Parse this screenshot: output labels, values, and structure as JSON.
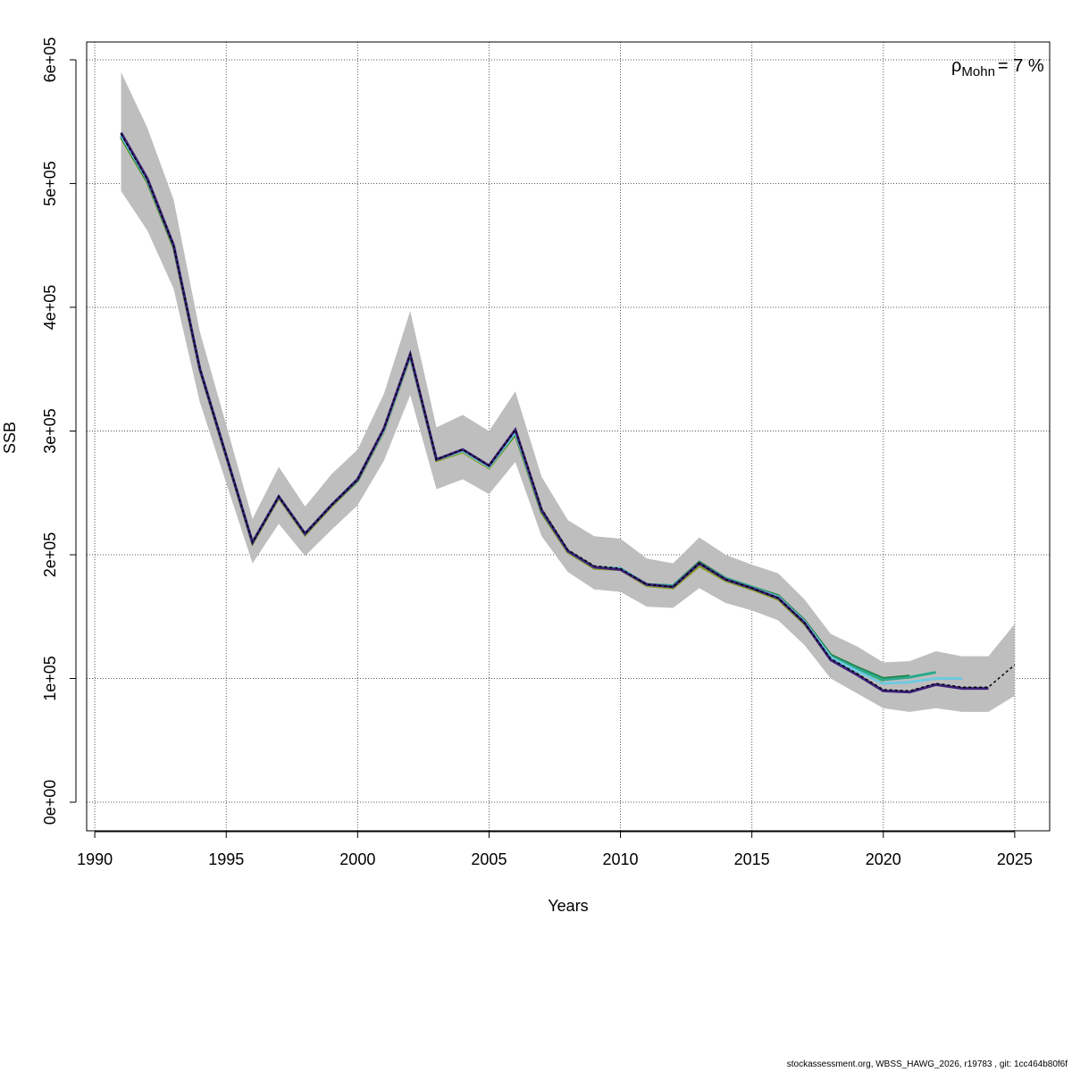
{
  "chart_data": {
    "type": "line",
    "x_label": "Years",
    "y_label": "SSB",
    "annotation": {
      "symbol": "ρ",
      "subscript": "Mohn",
      "text": "= 7 %"
    },
    "x": [
      1991,
      1992,
      1993,
      1994,
      1995,
      1996,
      1997,
      1998,
      1999,
      2000,
      2001,
      2002,
      2003,
      2004,
      2005,
      2006,
      2007,
      2008,
      2009,
      2010,
      2011,
      2012,
      2013,
      2014,
      2015,
      2016,
      2017,
      2018,
      2019,
      2020,
      2021,
      2022,
      2023,
      2024,
      2025
    ],
    "xlim": [
      1989.69,
      2026.33
    ],
    "xticks": [
      1990,
      1995,
      2000,
      2005,
      2010,
      2015,
      2020,
      2025
    ],
    "ylim": [
      -23100,
      614400
    ],
    "yticks": [
      {
        "value": 0,
        "label": "0e+00"
      },
      {
        "value": 100000,
        "label": "1e+05"
      },
      {
        "value": 200000,
        "label": "2e+05"
      },
      {
        "value": 300000,
        "label": "3e+05"
      },
      {
        "value": 400000,
        "label": "4e+05"
      },
      {
        "value": 500000,
        "label": "5e+05"
      },
      {
        "value": 600000,
        "label": "6e+05"
      }
    ],
    "grid": true,
    "band": {
      "color": "#bebebe",
      "upper": [
        590000,
        545000,
        487000,
        380000,
        305000,
        229000,
        271000,
        239000,
        265000,
        285000,
        330000,
        397000,
        303000,
        313000,
        300000,
        332000,
        263000,
        228000,
        215000,
        213000,
        197000,
        193000,
        214000,
        200000,
        192000,
        185000,
        164000,
        136000,
        126000,
        113000,
        114000,
        122000,
        118000,
        118000,
        144000
      ],
      "lower": [
        494000,
        462000,
        415000,
        323000,
        258000,
        193000,
        225000,
        199000,
        220000,
        240000,
        276000,
        329000,
        253000,
        261000,
        249000,
        275000,
        215000,
        186000,
        172000,
        170000,
        158000,
        157000,
        173000,
        161000,
        155000,
        147000,
        127000,
        100000,
        88000,
        76000,
        73000,
        76000,
        73000,
        73000,
        86000
      ]
    },
    "series": [
      {
        "color": "#8aa025",
        "values": [
          537000,
          501000,
          448000,
          349000,
          279000,
          209000,
          246000,
          216000,
          239000,
          260000,
          300000,
          360000,
          276000,
          283000,
          270000,
          297000,
          234000,
          202000,
          189000,
          188000,
          175000,
          173000,
          191000,
          179000,
          172000,
          164000,
          144000,
          117000,
          107000,
          98000,
          null,
          null,
          null,
          null,
          null
        ]
      },
      {
        "color": "#1b7a3a",
        "values": [
          538000,
          502000,
          449000,
          350000,
          280000,
          210000,
          247000,
          217000,
          240000,
          260000,
          301000,
          361000,
          277000,
          284000,
          271000,
          298000,
          235000,
          203000,
          190000,
          189000,
          176000,
          175000,
          194000,
          181000,
          174000,
          167000,
          147000,
          119000,
          109000,
          100000,
          102000,
          null,
          null,
          null,
          null
        ]
      },
      {
        "color": "#2aa88a",
        "values": [
          539000,
          503000,
          450000,
          350000,
          280000,
          210000,
          247000,
          217000,
          240000,
          261000,
          301000,
          361000,
          277000,
          284000,
          271000,
          299000,
          236000,
          203000,
          190000,
          189000,
          176000,
          175000,
          193000,
          181000,
          174000,
          166000,
          146000,
          118000,
          108000,
          99000,
          101000,
          105000,
          null,
          null,
          null
        ]
      },
      {
        "color": "#6fc9e0",
        "values": [
          539000,
          503000,
          450000,
          350000,
          280000,
          210000,
          247000,
          217000,
          240000,
          261000,
          301000,
          361000,
          277000,
          284000,
          271000,
          299000,
          236000,
          203000,
          190000,
          189000,
          176000,
          174000,
          193000,
          180000,
          173000,
          166000,
          146000,
          117000,
          106000,
          96000,
          97000,
          100000,
          100000,
          null,
          null
        ]
      },
      {
        "color": "#3b1f7a",
        "values": [
          541000,
          504000,
          450000,
          350000,
          280000,
          210000,
          247000,
          217000,
          240000,
          261000,
          302000,
          362000,
          277000,
          285000,
          272000,
          301000,
          236000,
          203000,
          190000,
          188000,
          176000,
          174000,
          193000,
          180000,
          173000,
          165000,
          145000,
          115000,
          103000,
          90000,
          89000,
          95000,
          92000,
          92000,
          null
        ]
      },
      {
        "color": "#000000",
        "dashed": true,
        "values": [
          540000,
          503000,
          450000,
          350000,
          280000,
          210000,
          247000,
          217000,
          240000,
          261000,
          302000,
          362000,
          277000,
          285000,
          272000,
          301000,
          237000,
          204000,
          191000,
          189000,
          176000,
          174000,
          193000,
          180000,
          173000,
          165000,
          145000,
          116000,
          104000,
          91000,
          90000,
          96000,
          93000,
          93000,
          111000
        ]
      }
    ]
  },
  "footer": "stockassessment.org, WBSS_HAWG_2026, r19783 , git: 1cc464b80f6f"
}
